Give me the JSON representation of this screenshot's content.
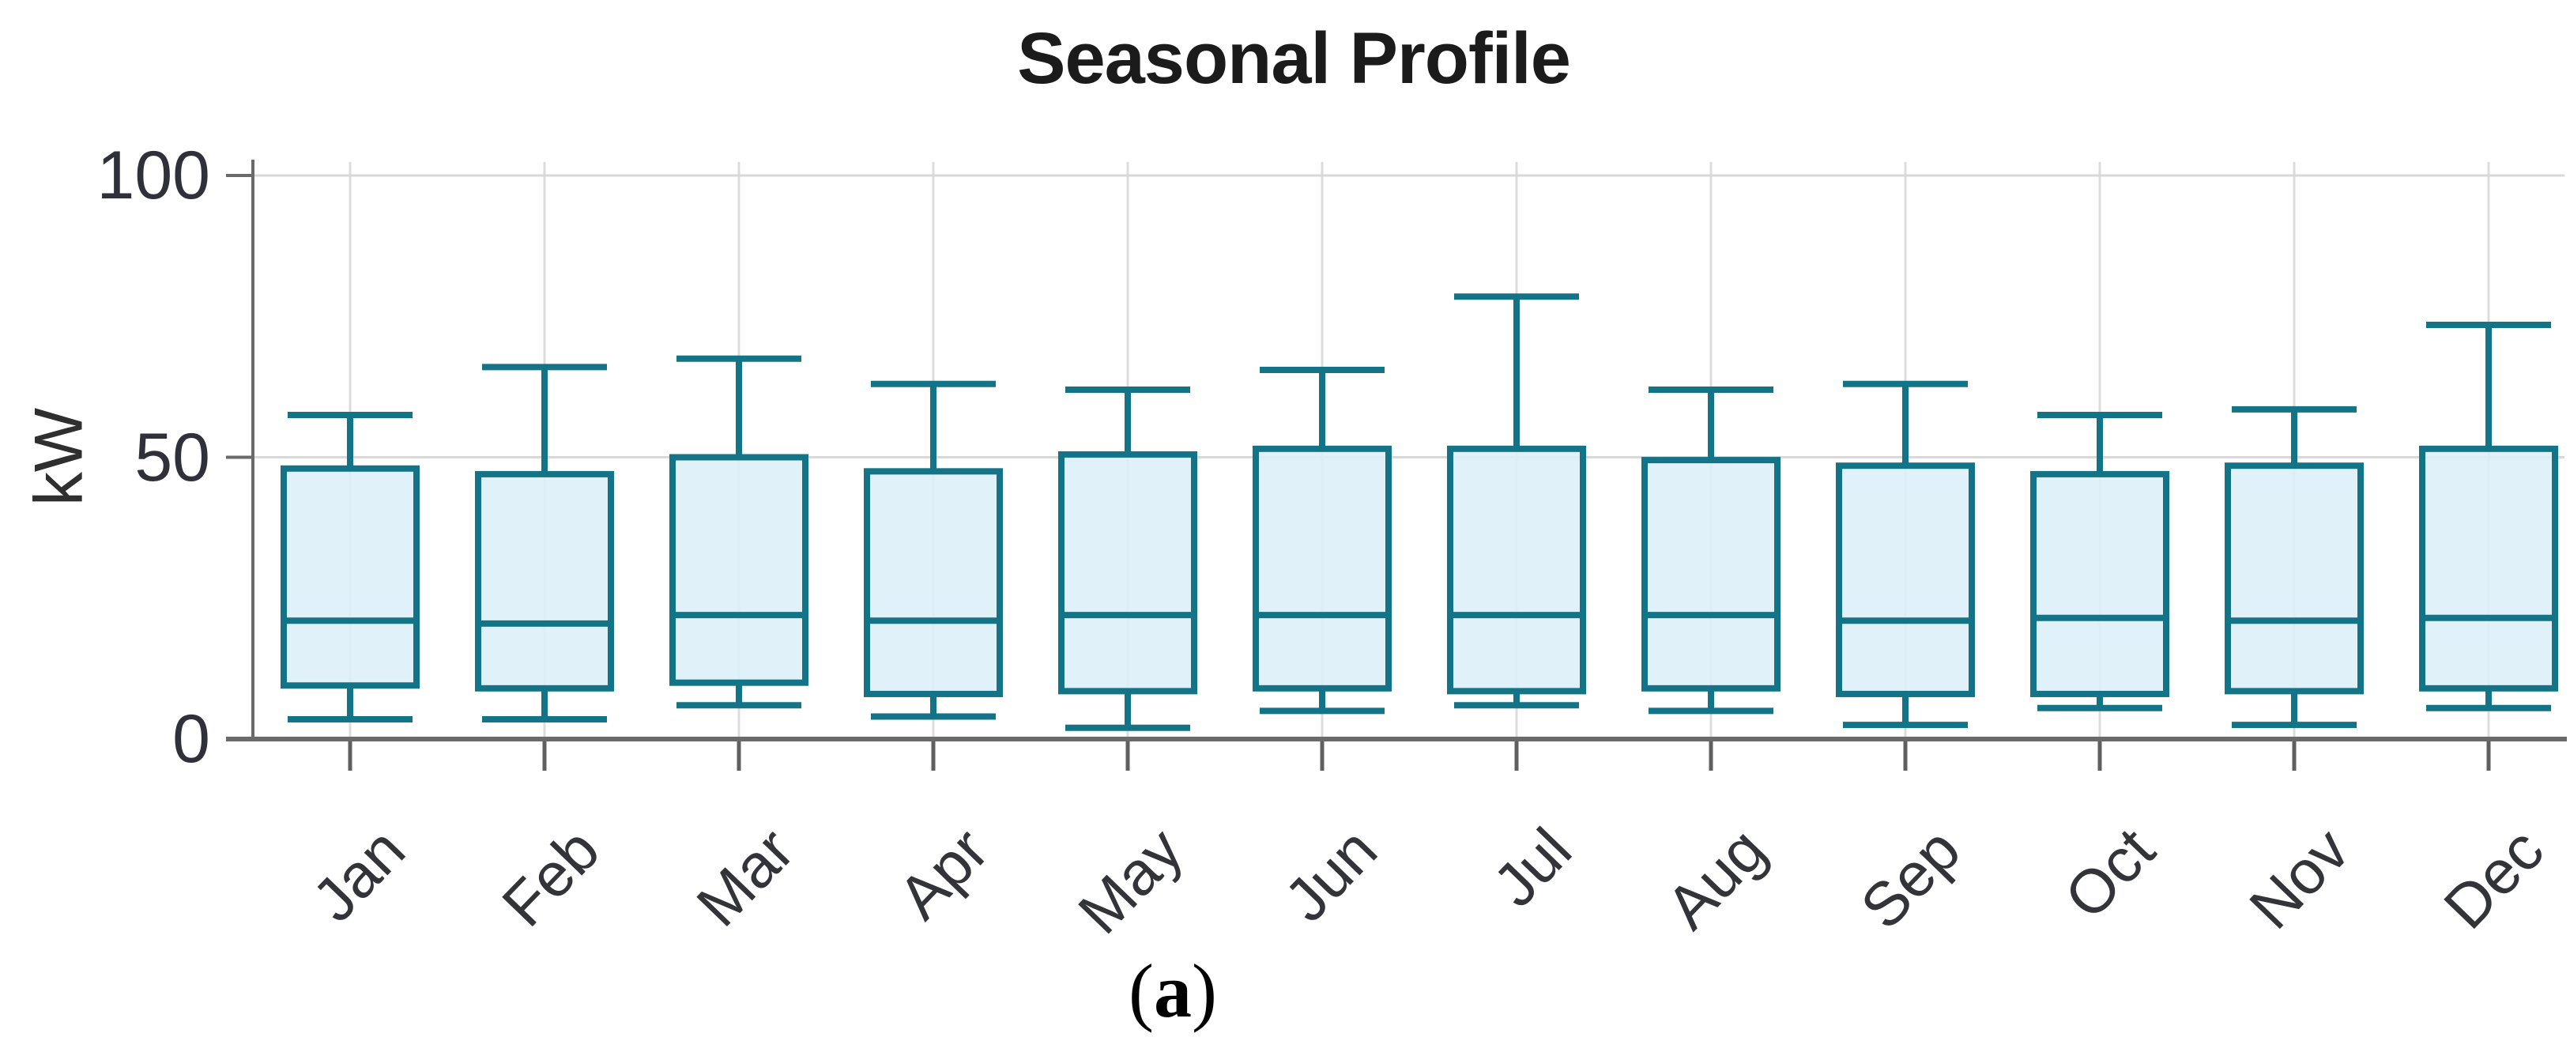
{
  "figure": {
    "caption": {
      "open": "(",
      "letter": "a",
      "close": ")"
    }
  },
  "chart_data": {
    "type": "boxplot",
    "title": "Seasonal Profile",
    "xlabel": "",
    "ylabel": "kW",
    "ylim": [
      0,
      100
    ],
    "grid": true,
    "legend": "none",
    "yticks": [
      {
        "value": 100,
        "label": "100"
      },
      {
        "value": 50,
        "label": "50"
      },
      {
        "value": 0,
        "label": "0"
      }
    ],
    "categories": [
      "Jan",
      "Feb",
      "Mar",
      "Apr",
      "May",
      "Jun",
      "Jul",
      "Aug",
      "Sep",
      "Oct",
      "Nov",
      "Dec"
    ],
    "series": [
      {
        "name": "kW",
        "boxes": [
          {
            "category": "Jan",
            "whisker_low": 3.5,
            "q1": 9.5,
            "median": 21,
            "q3": 48,
            "whisker_high": 57.5
          },
          {
            "category": "Feb",
            "whisker_low": 3.5,
            "q1": 9,
            "median": 20.5,
            "q3": 47,
            "whisker_high": 66
          },
          {
            "category": "Mar",
            "whisker_low": 6,
            "q1": 10,
            "median": 22,
            "q3": 50,
            "whisker_high": 67.5
          },
          {
            "category": "Apr",
            "whisker_low": 4,
            "q1": 8,
            "median": 21,
            "q3": 47.5,
            "whisker_high": 63
          },
          {
            "category": "May",
            "whisker_low": 2,
            "q1": 8.5,
            "median": 22,
            "q3": 50.5,
            "whisker_high": 62
          },
          {
            "category": "Jun",
            "whisker_low": 5,
            "q1": 9,
            "median": 22,
            "q3": 51.5,
            "whisker_high": 65.5
          },
          {
            "category": "Jul",
            "whisker_low": 6,
            "q1": 8.5,
            "median": 22,
            "q3": 51.5,
            "whisker_high": 78.5
          },
          {
            "category": "Aug",
            "whisker_low": 5,
            "q1": 9,
            "median": 22,
            "q3": 49.5,
            "whisker_high": 62
          },
          {
            "category": "Sep",
            "whisker_low": 2.5,
            "q1": 8,
            "median": 21,
            "q3": 48.5,
            "whisker_high": 63
          },
          {
            "category": "Oct",
            "whisker_low": 5.5,
            "q1": 8,
            "median": 21.5,
            "q3": 47,
            "whisker_high": 57.5
          },
          {
            "category": "Nov",
            "whisker_low": 2.5,
            "q1": 8.5,
            "median": 21,
            "q3": 48.5,
            "whisker_high": 58.5
          },
          {
            "category": "Dec",
            "whisker_low": 5.5,
            "q1": 9,
            "median": 21.5,
            "q3": 51.5,
            "whisker_high": 73.5
          }
        ]
      }
    ]
  },
  "colors": {
    "box_stroke": "#137387",
    "box_fill": "#dceff8",
    "gridline": "#d9d9d9",
    "vertical_gridline": "#dcdcdc",
    "axis": "#6a6a6a",
    "tick": "#5f5f5f",
    "text": "#30303a",
    "title_text": "#1b1b1b"
  }
}
